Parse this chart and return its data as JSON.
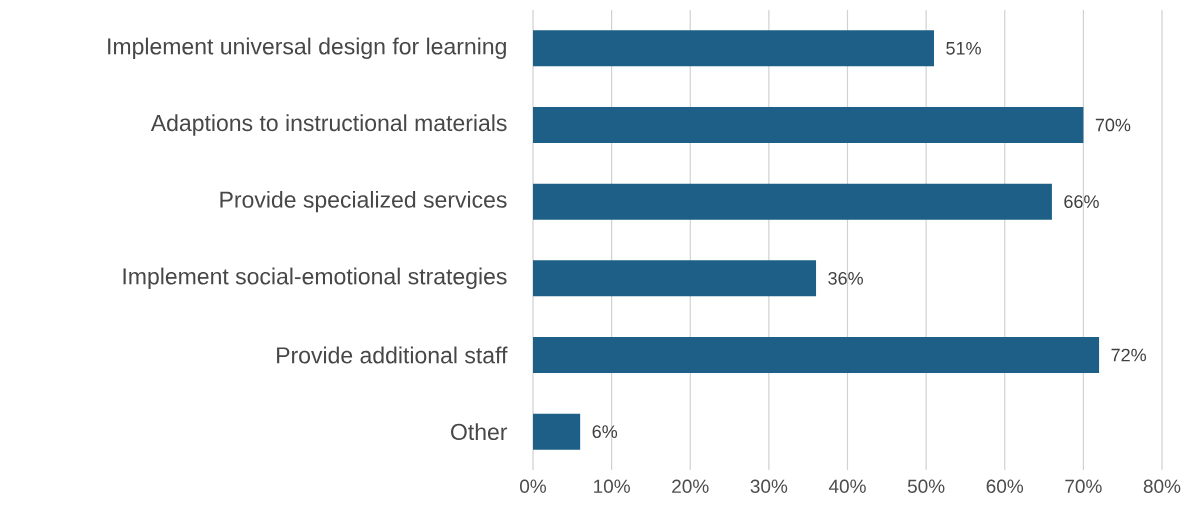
{
  "chart_data": {
    "type": "bar",
    "orientation": "horizontal",
    "categories": [
      "Implement universal design for learning",
      "Adaptions to instructional materials",
      "Provide specialized services",
      "Implement social-emotional strategies",
      "Provide additional staff",
      "Other"
    ],
    "values": [
      51,
      70,
      66,
      36,
      72,
      6
    ],
    "value_labels": [
      "51%",
      "70%",
      "66%",
      "36%",
      "72%",
      "6%"
    ],
    "color": "#1d5f87",
    "xlim": [
      0,
      80
    ],
    "xticks": [
      {
        "value": 0,
        "label": "0%"
      },
      {
        "value": 10,
        "label": "10%"
      },
      {
        "value": 20,
        "label": "20%"
      },
      {
        "value": 30,
        "label": "30%"
      },
      {
        "value": 40,
        "label": "40%"
      },
      {
        "value": 50,
        "label": "50%"
      },
      {
        "value": 60,
        "label": "60%"
      },
      {
        "value": 70,
        "label": "70%"
      },
      {
        "value": 80,
        "label": "80%"
      }
    ],
    "grid": "x"
  }
}
